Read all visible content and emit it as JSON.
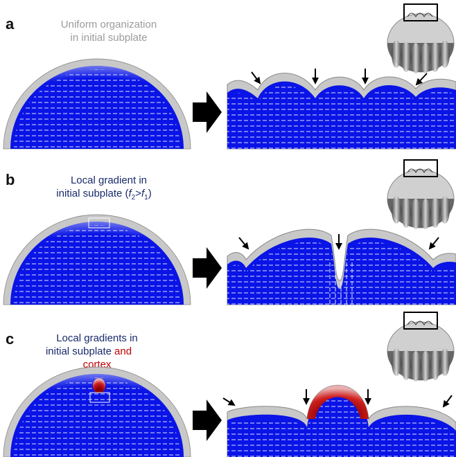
{
  "panels": [
    {
      "label": "a",
      "title_lines": [
        "Uniform organization",
        "in initial subplate"
      ]
    },
    {
      "label": "b",
      "title_lines": [
        "Local gradient in"
      ],
      "title_parts": [
        "initial subplate (",
        "f",
        "2",
        ">",
        "f",
        "1",
        ")"
      ]
    },
    {
      "label": "c",
      "title_lines": [
        "Local gradients in",
        "initial subplate"
      ],
      "highlight": [
        "and",
        "cortex"
      ]
    }
  ]
}
